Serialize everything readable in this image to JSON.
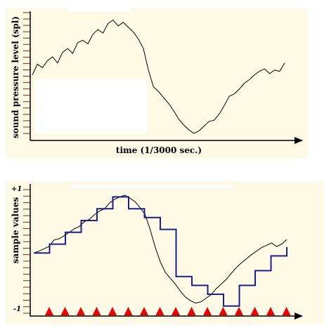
{
  "chart_data": [
    {
      "type": "line",
      "xlabel": "time (1/3000 sec.)",
      "ylabel": "sound pressure level (spl)",
      "grid": false,
      "series": [
        {
          "x": [
            0.0,
            0.02,
            0.04,
            0.06,
            0.08,
            0.1,
            0.12,
            0.14,
            0.16,
            0.18,
            0.2,
            0.22,
            0.24,
            0.26,
            0.28,
            0.3,
            0.32,
            0.34,
            0.36,
            0.38,
            0.4,
            0.42,
            0.44,
            0.46,
            0.48,
            0.5,
            0.52,
            0.54,
            0.56,
            0.58,
            0.6,
            0.62,
            0.64,
            0.66,
            0.68,
            0.7,
            0.72,
            0.74,
            0.76,
            0.78,
            0.8,
            0.82,
            0.84,
            0.86,
            0.88,
            0.9,
            0.92,
            0.94,
            0.96,
            0.98,
            1.0
          ],
          "y": [
            0.52,
            0.61,
            0.58,
            0.64,
            0.67,
            0.62,
            0.71,
            0.74,
            0.7,
            0.79,
            0.81,
            0.78,
            0.86,
            0.9,
            0.87,
            0.95,
            0.98,
            0.93,
            0.96,
            0.92,
            0.88,
            0.82,
            0.74,
            0.56,
            0.42,
            0.38,
            0.33,
            0.28,
            0.22,
            0.15,
            0.1,
            0.06,
            0.03,
            0.05,
            0.09,
            0.13,
            0.14,
            0.19,
            0.26,
            0.34,
            0.36,
            0.4,
            0.45,
            0.48,
            0.52,
            0.55,
            0.57,
            0.53,
            0.56,
            0.55,
            0.62
          ]
        }
      ]
    },
    {
      "type": "line",
      "xlabel": "",
      "ylabel": "sample values",
      "ytick_labels": [
        "+1",
        "-1"
      ],
      "ylim": [
        -1,
        1
      ],
      "grid": false,
      "series": [
        {
          "x": [
            0.0,
            0.02,
            0.04,
            0.06,
            0.08,
            0.1,
            0.12,
            0.14,
            0.16,
            0.18,
            0.2,
            0.22,
            0.24,
            0.26,
            0.28,
            0.3,
            0.32,
            0.34,
            0.36,
            0.38,
            0.4,
            0.42,
            0.44,
            0.46,
            0.48,
            0.5,
            0.52,
            0.54,
            0.56,
            0.58,
            0.6,
            0.62,
            0.64,
            0.66,
            0.68,
            0.7,
            0.72,
            0.74,
            0.76,
            0.78,
            0.8,
            0.82,
            0.84,
            0.86,
            0.88,
            0.9,
            0.92,
            0.94,
            0.96,
            0.98,
            1.0
          ],
          "y": [
            -0.05,
            -0.02,
            0.02,
            0.06,
            0.17,
            0.19,
            0.24,
            0.3,
            0.36,
            0.4,
            0.48,
            0.52,
            0.6,
            0.66,
            0.7,
            0.8,
            0.86,
            0.9,
            0.93,
            0.88,
            0.82,
            0.72,
            0.6,
            0.35,
            0.05,
            -0.2,
            -0.38,
            -0.48,
            -0.58,
            -0.7,
            -0.8,
            -0.86,
            -0.9,
            -0.88,
            -0.82,
            -0.76,
            -0.66,
            -0.58,
            -0.5,
            -0.4,
            -0.3,
            -0.22,
            -0.15,
            -0.08,
            -0.02,
            0.04,
            0.08,
            0.12,
            0.06,
            0.1,
            0.18
          ]
        },
        {
          "type": "step",
          "x": [
            0.0,
            0.0625,
            0.125,
            0.1875,
            0.25,
            0.3125,
            0.375,
            0.4375,
            0.5,
            0.5625,
            0.625,
            0.6875,
            0.75,
            0.8125,
            0.875,
            0.9375
          ],
          "y": [
            -0.05,
            0.1,
            0.3,
            0.5,
            0.7,
            0.9,
            0.7,
            0.55,
            0.35,
            -0.45,
            -0.6,
            -0.75,
            -0.95,
            -0.6,
            -0.35,
            -0.1
          ],
          "x_end": 1.0,
          "y_end": 0.05
        }
      ],
      "sample_markers": [
        0.0,
        0.0625,
        0.125,
        0.1875,
        0.25,
        0.3125,
        0.375,
        0.4375,
        0.5,
        0.5625,
        0.625,
        0.6875,
        0.75,
        0.8125,
        0.875,
        0.9375
      ]
    }
  ],
  "colors": {
    "panel_bg": "#fffae6",
    "axis": "#000000",
    "tick": "#7a2a1a",
    "wave": "#000000",
    "step": "#1a1f8f",
    "marker": "#ee0000"
  }
}
